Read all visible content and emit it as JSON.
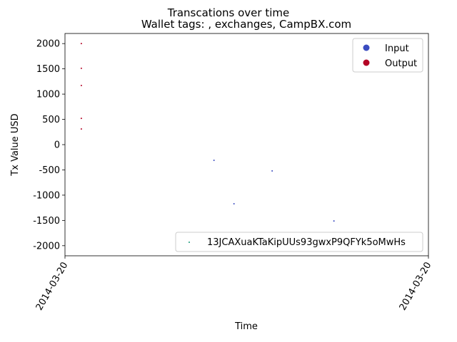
{
  "chart_data": {
    "type": "scatter",
    "suptitle": "Transcations over time",
    "title": "Wallet tags: , exchanges, CampBX.com",
    "xlabel": "Time",
    "ylabel": "Tx Value USD",
    "ylim": [
      -2200,
      2200
    ],
    "yticks": [
      2000,
      1500,
      1000,
      500,
      0,
      -500,
      -1000,
      -1500,
      -2000
    ],
    "xlim": [
      0,
      1
    ],
    "xticks": [
      {
        "pos": 0,
        "label": "2014-03-20"
      },
      {
        "pos": 1,
        "label": "2014-03-20"
      }
    ],
    "grid": false,
    "series": [
      {
        "name": "Output",
        "color": "#b40426",
        "marker": "dot",
        "points": [
          [
            0.045,
            2000
          ],
          [
            0.045,
            1510
          ],
          [
            0.045,
            1170
          ],
          [
            0.045,
            520
          ],
          [
            0.045,
            310
          ]
        ]
      },
      {
        "name": "Input",
        "color": "#3b4cc0",
        "marker": "dot",
        "points": [
          [
            0.41,
            -310
          ],
          [
            0.465,
            -1170
          ],
          [
            0.57,
            -520
          ],
          [
            0.74,
            -1510
          ]
        ]
      }
    ],
    "legend_classes": {
      "position": "upper right",
      "entries": [
        {
          "label": "Input",
          "color": "#3b4cc0"
        },
        {
          "label": "Output",
          "color": "#b40426"
        }
      ]
    },
    "legend_wallet": {
      "position": "lower right",
      "entries": [
        {
          "label": "13JCAXuaKTaKipUUs93gwxP9QFYk5oMwHs",
          "color": "#1a9a7a"
        }
      ]
    }
  }
}
